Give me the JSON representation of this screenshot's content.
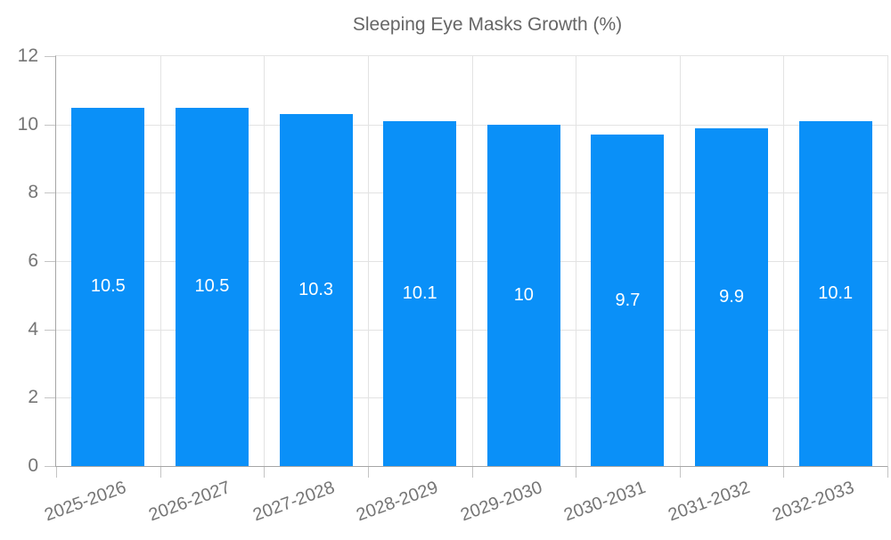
{
  "chart_data": {
    "type": "bar",
    "title": "",
    "legend": "Sleeping Eye Masks Growth (%)",
    "legend_position": "top-center",
    "categories": [
      "2025-2026",
      "2026-2027",
      "2027-2028",
      "2028-2029",
      "2029-2030",
      "2030-2031",
      "2031-2032",
      "2032-2033"
    ],
    "series": [
      {
        "name": "Sleeping Eye Masks Growth (%)",
        "values": [
          10.5,
          10.5,
          10.3,
          10.1,
          10,
          9.7,
          9.9,
          10.1
        ]
      }
    ],
    "value_labels": [
      "10.5",
      "10.5",
      "10.3",
      "10.1",
      "10",
      "9.7",
      "9.9",
      "10.1"
    ],
    "xlabel": "",
    "ylabel": "",
    "ylim": [
      0,
      12
    ],
    "yticks": [
      0,
      2,
      4,
      6,
      8,
      10,
      12
    ],
    "grid": true,
    "colors": {
      "bar": "#0a90f8",
      "grid": "#e3e3e3",
      "axis": "#a6a6a6",
      "tick": "#c4c4c4",
      "axis_text": "#757575",
      "legend_text": "#666666",
      "bar_label_text": "#ffffff"
    }
  }
}
